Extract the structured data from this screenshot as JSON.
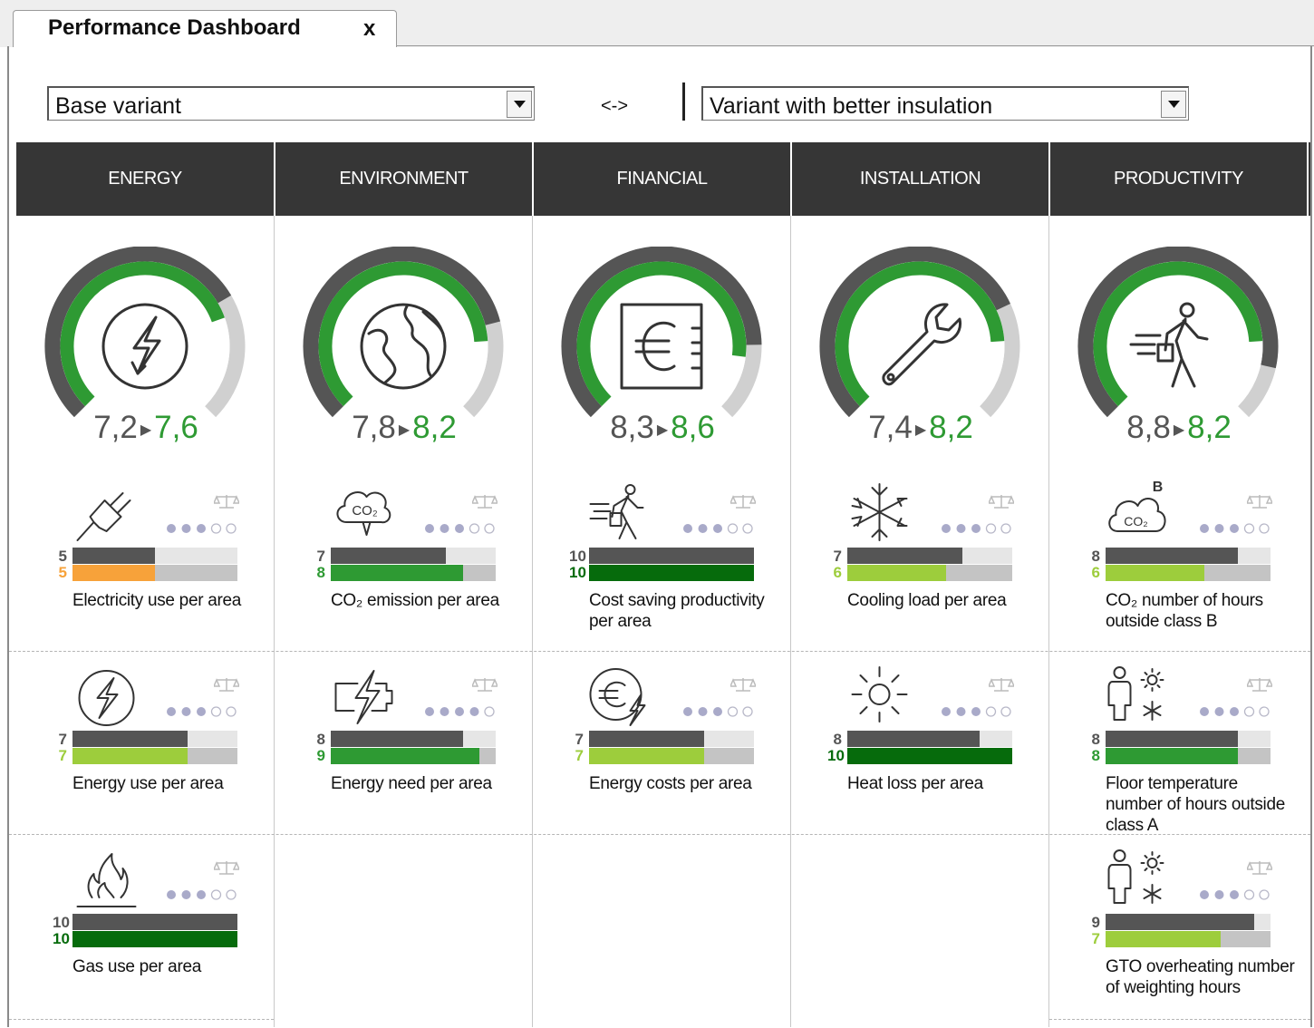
{
  "tab": {
    "title": "Performance Dashboard",
    "close": "x"
  },
  "selectors": {
    "left": {
      "value": "Base variant"
    },
    "swap": "<->",
    "right": {
      "value": "Variant with better insulation"
    }
  },
  "categories": [
    {
      "name": "ENERGY",
      "from": "7,2",
      "to": "7,6",
      "icon": "lightning-bolt-icon",
      "base": 0.72,
      "variant": 0.76
    },
    {
      "name": "ENVIRONMENT",
      "from": "7,8",
      "to": "8,2",
      "icon": "globe-icon",
      "base": 0.78,
      "variant": 0.82
    },
    {
      "name": "FINANCIAL",
      "from": "8,3",
      "to": "8,6",
      "icon": "euro-safe-icon",
      "base": 0.83,
      "variant": 0.86
    },
    {
      "name": "INSTALLATION",
      "from": "7,4",
      "to": "8,2",
      "icon": "wrench-icon",
      "base": 0.74,
      "variant": 0.82
    },
    {
      "name": "PRODUCTIVITY",
      "from": "8,8",
      "to": "8,2",
      "icon": "walking-person-icon",
      "base": 0.88,
      "variant": 0.82
    }
  ],
  "indicators": [
    [
      {
        "icon": "plug-icon",
        "base": 5,
        "variant": 5,
        "label": "Electricity use per area",
        "variant_color": "#f7a23a",
        "importance": 3
      },
      {
        "icon": "lightning-icon",
        "base": 7,
        "variant": 7,
        "label": "Energy use per area",
        "variant_color": "#9dcd3c",
        "importance": 3
      },
      {
        "icon": "flame-icon",
        "base": 10,
        "variant": 10,
        "label": "Gas use per area",
        "variant_color": "#066b0c",
        "importance": 3
      }
    ],
    [
      {
        "icon": "co2-emission-icon",
        "base": 7,
        "variant": 8,
        "label": "CO₂ emission per area",
        "variant_color": "#2e9a33",
        "importance": 3
      },
      {
        "icon": "battery-lightning-icon",
        "base": 8,
        "variant": 9,
        "label": "Energy need per area",
        "variant_color": "#2e9a33",
        "importance": 4
      }
    ],
    [
      {
        "icon": "running-person-icon",
        "base": 10,
        "variant": 10,
        "label": "Cost saving productivity per area",
        "variant_color": "#066b0c",
        "importance": 3
      },
      {
        "icon": "euro-lightning-icon",
        "base": 7,
        "variant": 7,
        "label": "Energy costs per area",
        "variant_color": "#9dcd3c",
        "importance": 3
      }
    ],
    [
      {
        "icon": "snowflake-icon",
        "base": 7,
        "variant": 6,
        "label": "Cooling load per area",
        "variant_color": "#9dcd3c",
        "importance": 3
      },
      {
        "icon": "sun-icon",
        "base": 8,
        "variant": 10,
        "label": "Heat loss per area",
        "variant_color": "#066b0c",
        "importance": 3
      }
    ],
    [
      {
        "icon": "co2-cloud-icon",
        "base": 8,
        "variant": 6,
        "label": "CO₂ number of hours outside class B",
        "variant_color": "#9dcd3c",
        "importance": 3
      },
      {
        "icon": "person-sun-snow-icon",
        "base": 8,
        "variant": 8,
        "label": "Floor temperature number of hours outside class A",
        "variant_color": "#2e9a33",
        "importance": 3
      },
      {
        "icon": "person-sun-snow-icon",
        "base": 9,
        "variant": 7,
        "label": "GTO overheating number of weighting hours",
        "variant_color": "#9dcd3c",
        "importance": 3
      }
    ]
  ],
  "colors": {
    "header_bg": "#363636",
    "gauge_gray": "#555555",
    "gauge_green": "#2e9a33",
    "gauge_light": "#d0d0d0",
    "base_bar": "#555555"
  },
  "scale_max": 10
}
